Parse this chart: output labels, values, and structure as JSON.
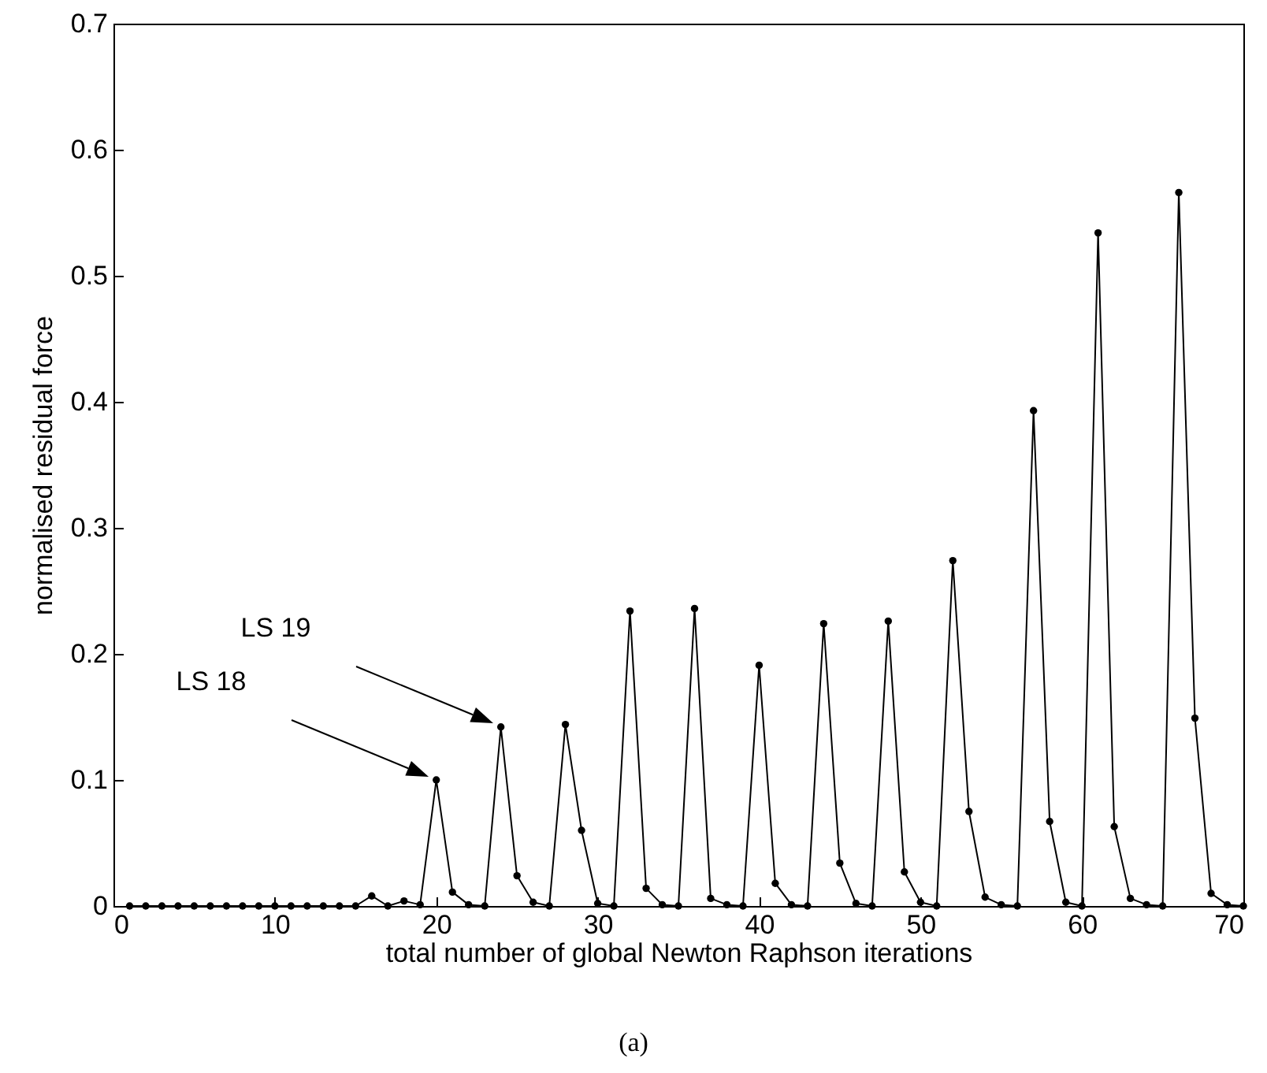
{
  "chart_data": {
    "type": "line",
    "xlabel": "total number of global Newton Raphson iterations",
    "ylabel": "normalised residual force",
    "x": [
      1,
      2,
      3,
      4,
      5,
      6,
      7,
      8,
      9,
      10,
      11,
      12,
      13,
      14,
      15,
      16,
      17,
      18,
      19,
      20,
      21,
      22,
      23,
      24,
      25,
      26,
      27,
      28,
      29,
      30,
      31,
      32,
      33,
      34,
      35,
      36,
      37,
      38,
      39,
      40,
      41,
      42,
      43,
      44,
      45,
      46,
      47,
      48,
      49,
      50,
      51,
      52,
      53,
      54,
      55,
      56,
      57,
      58,
      59,
      60,
      61,
      62,
      63,
      64,
      65,
      66,
      67,
      68,
      69,
      70
    ],
    "series": [
      {
        "color": "#000000",
        "values": [
          0,
          0,
          0,
          0,
          0,
          0,
          0,
          0,
          0,
          0,
          0,
          0,
          0,
          0,
          0,
          0.008,
          0,
          0.004,
          0.001,
          0.1,
          0.011,
          0.001,
          0,
          0.142,
          0.024,
          0.003,
          0,
          0.144,
          0.06,
          0.002,
          0,
          0.234,
          0.014,
          0.001,
          0,
          0.236,
          0.006,
          0.001,
          0,
          0.191,
          0.018,
          0.001,
          0,
          0.224,
          0.034,
          0.002,
          0,
          0.226,
          0.027,
          0.003,
          0,
          0.274,
          0.075,
          0.007,
          0.001,
          0,
          0.393,
          0.067,
          0.003,
          0,
          0.534,
          0.063,
          0.006,
          0.001,
          0,
          0.566,
          0.149,
          0.01,
          0.001,
          0
        ]
      }
    ],
    "xlim": [
      0,
      70
    ],
    "xticks": [
      0,
      10,
      20,
      30,
      40,
      50,
      60,
      70
    ],
    "ylim": [
      0,
      0.7
    ],
    "yticks": [
      0,
      0.1,
      0.2,
      0.3,
      0.4,
      0.5,
      0.6,
      0.7
    ],
    "marker": "circle",
    "line_style": "solid",
    "grid": false,
    "annotations": [
      "LS 18",
      "LS 19",
      "(a)"
    ]
  }
}
